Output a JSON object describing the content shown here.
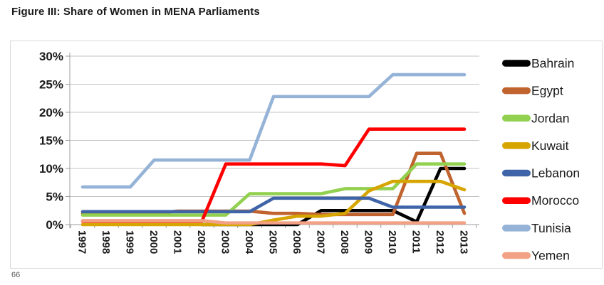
{
  "title": "Figure III: Share of Women in MENA Parliaments",
  "page_number": "66",
  "chart_data": {
    "type": "line",
    "title": "Figure III: Share of Women in MENA Parliaments",
    "xlabel": "",
    "ylabel": "",
    "x": [
      1997,
      1998,
      1999,
      2000,
      2001,
      2002,
      2003,
      2004,
      2005,
      2006,
      2007,
      2008,
      2009,
      2010,
      2011,
      2012,
      2013
    ],
    "y_tick_labels": [
      "0%",
      "5%",
      "10%",
      "15%",
      "20%",
      "25%",
      "30%"
    ],
    "ylim": [
      0,
      30
    ],
    "grid": "horizontal",
    "legend_position": "right",
    "series": [
      {
        "name": "Bahrain",
        "color": "#000000",
        "values": [
          null,
          null,
          null,
          null,
          null,
          0,
          0,
          0,
          0,
          0,
          2.5,
          2.5,
          2.5,
          2.5,
          0.5,
          10,
          10
        ]
      },
      {
        "name": "Egypt",
        "color": "#C0632E",
        "values": [
          2,
          2,
          2,
          2,
          2.4,
          2.4,
          2.4,
          2.4,
          2,
          2,
          1.8,
          1.8,
          1.8,
          1.8,
          12.7,
          12.7,
          2
        ]
      },
      {
        "name": "Jordan",
        "color": "#92D050",
        "values": [
          1.7,
          1.7,
          1.7,
          1.7,
          1.7,
          1.7,
          1.7,
          5.5,
          5.5,
          5.5,
          5.5,
          6.4,
          6.4,
          6.4,
          10.8,
          10.8,
          10.8
        ]
      },
      {
        "name": "Kuwait",
        "color": "#D7A500",
        "values": [
          0,
          0,
          0,
          0,
          0,
          0,
          0,
          0,
          0.8,
          1.5,
          1.5,
          2,
          6,
          7.7,
          7.7,
          7.7,
          6.2
        ]
      },
      {
        "name": "Lebanon",
        "color": "#3F64A7",
        "values": [
          2.3,
          2.3,
          2.3,
          2.3,
          2.3,
          2.3,
          2.3,
          2.3,
          4.7,
          4.7,
          4.7,
          4.7,
          4.7,
          3.1,
          3.1,
          3.1,
          3.1
        ]
      },
      {
        "name": "Morocco",
        "color": "#FF0000",
        "values": [
          0.6,
          0.6,
          0.6,
          0.6,
          0.6,
          0.6,
          10.8,
          10.8,
          10.8,
          10.8,
          10.8,
          10.5,
          17,
          17,
          17,
          17,
          17
        ]
      },
      {
        "name": "Tunisia",
        "color": "#95B3D7",
        "values": [
          6.7,
          6.7,
          6.7,
          11.5,
          11.5,
          11.5,
          11.5,
          11.5,
          22.8,
          22.8,
          22.8,
          22.8,
          22.8,
          26.7,
          26.7,
          26.7,
          26.7
        ]
      },
      {
        "name": "Yemen",
        "color": "#F2A184",
        "values": [
          0.7,
          0.7,
          0.7,
          0.7,
          0.7,
          0.7,
          0.3,
          0.3,
          0.3,
          0.3,
          0.3,
          0.3,
          0.3,
          0.3,
          0.3,
          0.3,
          0.3
        ]
      }
    ]
  }
}
